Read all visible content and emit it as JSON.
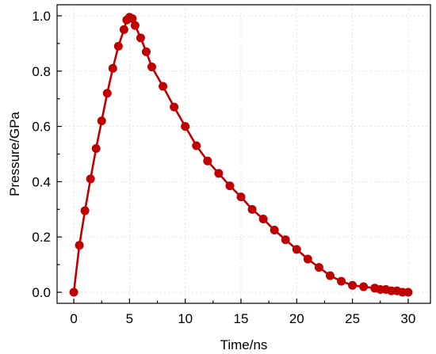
{
  "chart_data": {
    "type": "line",
    "xlabel": "Time/ns",
    "ylabel": "Pressure/GPa",
    "xlim": [
      -1.5,
      32
    ],
    "ylim": [
      -0.04,
      1.04
    ],
    "xticks": [
      "0",
      "5",
      "10",
      "15",
      "20",
      "25",
      "30"
    ],
    "yticks": [
      "0.0",
      "0.2",
      "0.4",
      "0.6",
      "0.8",
      "1.0"
    ],
    "grid": true,
    "legend": "none",
    "series": [
      {
        "color": "#c00000",
        "marker": "circle",
        "x": [
          0,
          0.5,
          1,
          1.5,
          2,
          2.5,
          3,
          3.5,
          4,
          4.5,
          4.75,
          5,
          5.25,
          5.5,
          6,
          6.5,
          7,
          8,
          9,
          10,
          11,
          12,
          13,
          14,
          15,
          16,
          17,
          18,
          19,
          20,
          21,
          22,
          23,
          24,
          25,
          26,
          27,
          27.5,
          28,
          28.5,
          29,
          29.5,
          30
        ],
        "y": [
          0.0,
          0.17,
          0.295,
          0.41,
          0.52,
          0.62,
          0.72,
          0.81,
          0.89,
          0.95,
          0.985,
          0.995,
          0.99,
          0.965,
          0.92,
          0.87,
          0.815,
          0.745,
          0.67,
          0.6,
          0.53,
          0.475,
          0.43,
          0.385,
          0.345,
          0.3,
          0.265,
          0.225,
          0.19,
          0.155,
          0.12,
          0.09,
          0.06,
          0.04,
          0.025,
          0.02,
          0.015,
          0.01,
          0.01,
          0.005,
          0.005,
          0.0,
          0.0
        ]
      }
    ]
  }
}
